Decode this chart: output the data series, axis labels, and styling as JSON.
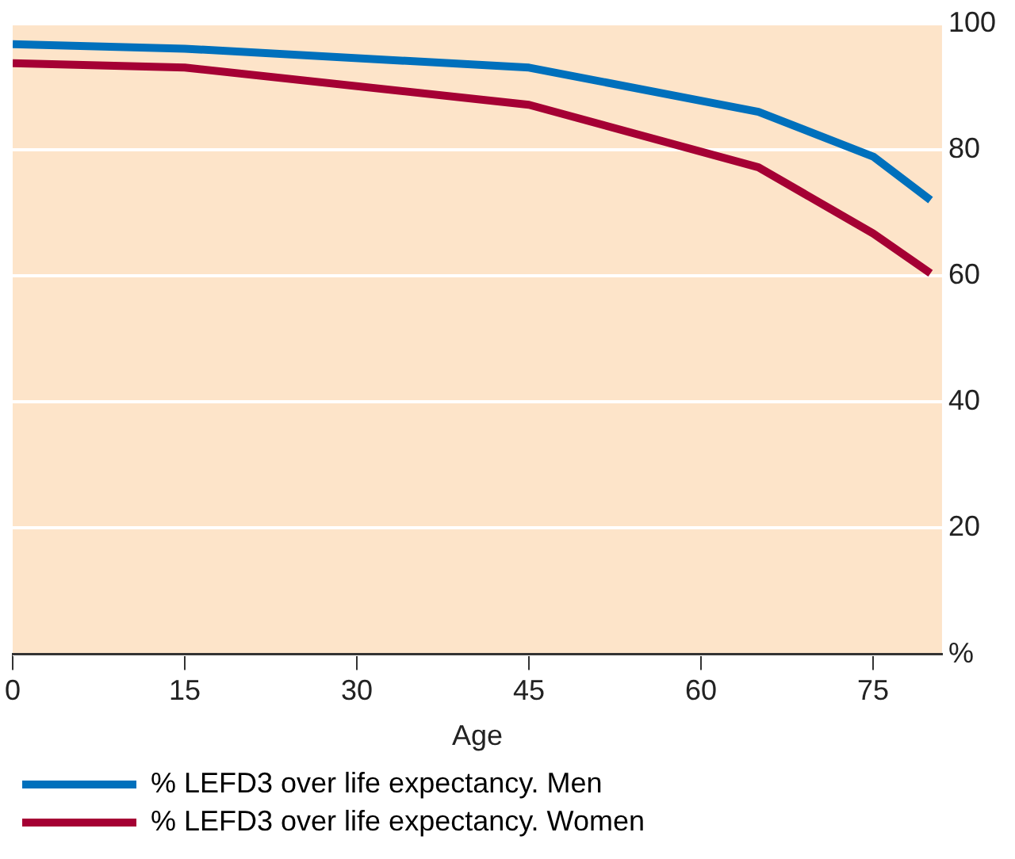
{
  "chart_data": {
    "type": "line",
    "xlabel": "Age",
    "x": [
      0,
      15,
      45,
      65,
      75,
      80
    ],
    "series": [
      {
        "name": "% LEFD3 over life expectancy. Men",
        "color": "#0070bc",
        "values": [
          96.7,
          96,
          93,
          86,
          78.9,
          72
        ]
      },
      {
        "name": "% LEFD3 over life expectancy. Women",
        "color": "#a50034",
        "values": [
          93.7,
          93,
          87.1,
          77.2,
          66.7,
          60.4
        ]
      }
    ],
    "xlim": [
      0,
      81
    ],
    "xticks": [
      0,
      15,
      30,
      45,
      60,
      75
    ],
    "ylim": [
      0,
      100
    ],
    "yticks": [
      {
        "value": 0,
        "label": "%"
      },
      20,
      40,
      60,
      80,
      100
    ],
    "grid": "y",
    "legend": "bottom",
    "marker": "none",
    "line_style": "solid"
  }
}
